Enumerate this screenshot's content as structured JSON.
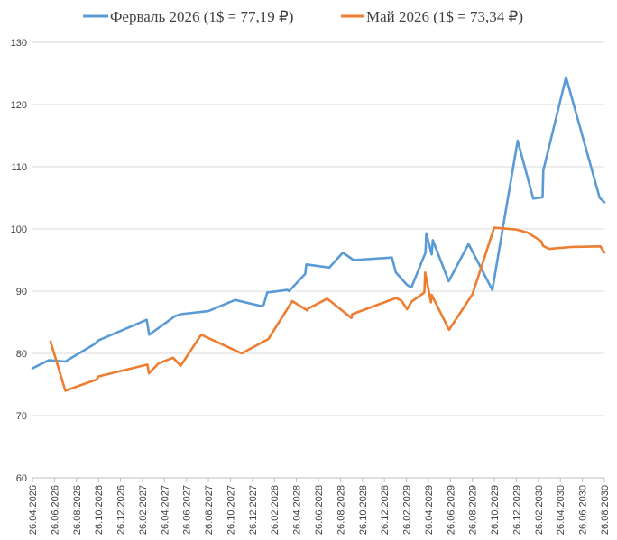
{
  "chart_data": {
    "type": "line",
    "title": "",
    "xlabel": "",
    "ylabel": "",
    "ylim": [
      60,
      130
    ],
    "yticks": [
      60,
      70,
      80,
      90,
      100,
      110,
      120,
      130
    ],
    "x_tick_labels": [
      "26.04.2026",
      "26.06.2026",
      "26.08.2026",
      "26.10.2026",
      "26.12.2026",
      "26.02.2027",
      "26.04.2027",
      "26.06.2027",
      "26.08.2027",
      "26.10.2027",
      "26.12.2027",
      "26.02.2028",
      "26.04.2028",
      "26.06.2028",
      "26.08.2028",
      "26.10.2028",
      "26.12.2028",
      "26.02.2029",
      "26.04.2029",
      "26.06.2029",
      "26.08.2029",
      "26.10.2029",
      "26.12.2029",
      "26.02.2030",
      "26.04.2030",
      "26.06.2030",
      "26.08.2030"
    ],
    "xlim": [
      "2026-04-26",
      "2030-08-26"
    ],
    "grid": true,
    "legend": "top",
    "series": [
      {
        "name": "Ферваль 2026 (1$ = 77,19 ₽)",
        "color": "#5b9bd5",
        "points": [
          [
            "2026-04-26",
            77.6
          ],
          [
            "2026-06-10",
            78.9
          ],
          [
            "2026-07-26",
            78.7
          ],
          [
            "2026-10-15",
            81.5
          ],
          [
            "2026-10-26",
            82.1
          ],
          [
            "2027-03-08",
            85.4
          ],
          [
            "2027-03-15",
            83.0
          ],
          [
            "2027-04-15",
            84.3
          ],
          [
            "2027-05-26",
            86.0
          ],
          [
            "2027-06-10",
            86.3
          ],
          [
            "2027-08-26",
            86.8
          ],
          [
            "2027-11-08",
            88.6
          ],
          [
            "2028-01-20",
            87.6
          ],
          [
            "2028-01-26",
            87.8
          ],
          [
            "2028-02-05",
            89.8
          ],
          [
            "2028-04-01",
            90.2
          ],
          [
            "2028-04-05",
            90.0
          ],
          [
            "2028-05-20",
            92.8
          ],
          [
            "2028-05-23",
            94.3
          ],
          [
            "2028-07-26",
            93.8
          ],
          [
            "2028-09-01",
            96.2
          ],
          [
            "2028-10-01",
            95.0
          ],
          [
            "2029-01-15",
            95.4
          ],
          [
            "2029-01-26",
            93.0
          ],
          [
            "2029-02-26",
            91.0
          ],
          [
            "2029-03-10",
            90.6
          ],
          [
            "2029-04-18",
            96.2
          ],
          [
            "2029-04-20",
            99.3
          ],
          [
            "2029-05-05",
            95.9
          ],
          [
            "2029-05-08",
            98.2
          ],
          [
            "2029-06-21",
            91.6
          ],
          [
            "2029-08-15",
            97.6
          ],
          [
            "2029-10-20",
            90.2
          ],
          [
            "2029-12-29",
            114.2
          ],
          [
            "2030-02-10",
            104.9
          ],
          [
            "2030-03-08",
            105.1
          ],
          [
            "2030-03-10",
            109.4
          ],
          [
            "2030-05-12",
            124.4
          ],
          [
            "2030-08-13",
            105.0
          ],
          [
            "2030-08-26",
            104.3
          ]
        ]
      },
      {
        "name": "Май 2026 (1$ = 73,34 ₽)",
        "color": "#ed7d31",
        "points": [
          [
            "2026-06-15",
            81.9
          ],
          [
            "2026-07-26",
            74.0
          ],
          [
            "2026-10-20",
            75.8
          ],
          [
            "2026-10-26",
            76.3
          ],
          [
            "2027-03-10",
            78.2
          ],
          [
            "2027-03-14",
            76.8
          ],
          [
            "2027-04-10",
            78.4
          ],
          [
            "2027-05-20",
            79.3
          ],
          [
            "2027-06-10",
            78.0
          ],
          [
            "2027-08-06",
            83.0
          ],
          [
            "2027-11-26",
            80.0
          ],
          [
            "2028-02-08",
            82.3
          ],
          [
            "2028-04-14",
            88.4
          ],
          [
            "2028-05-26",
            86.9
          ],
          [
            "2028-05-28",
            87.2
          ],
          [
            "2028-07-20",
            88.8
          ],
          [
            "2028-09-25",
            85.7
          ],
          [
            "2028-09-27",
            86.3
          ],
          [
            "2029-01-26",
            88.9
          ],
          [
            "2029-02-10",
            88.5
          ],
          [
            "2029-02-26",
            87.1
          ],
          [
            "2029-03-10",
            88.3
          ],
          [
            "2029-04-15",
            89.8
          ],
          [
            "2029-04-17",
            93.0
          ],
          [
            "2029-05-03",
            88.2
          ],
          [
            "2029-05-05",
            89.4
          ],
          [
            "2029-06-22",
            83.8
          ],
          [
            "2029-08-26",
            89.5
          ],
          [
            "2029-10-25",
            100.2
          ],
          [
            "2029-12-26",
            99.9
          ],
          [
            "2030-01-26",
            99.4
          ],
          [
            "2030-03-05",
            98.0
          ],
          [
            "2030-03-09",
            97.3
          ],
          [
            "2030-03-26",
            96.8
          ],
          [
            "2030-05-26",
            97.1
          ],
          [
            "2030-08-15",
            97.2
          ],
          [
            "2030-08-26",
            96.2
          ]
        ]
      }
    ]
  }
}
